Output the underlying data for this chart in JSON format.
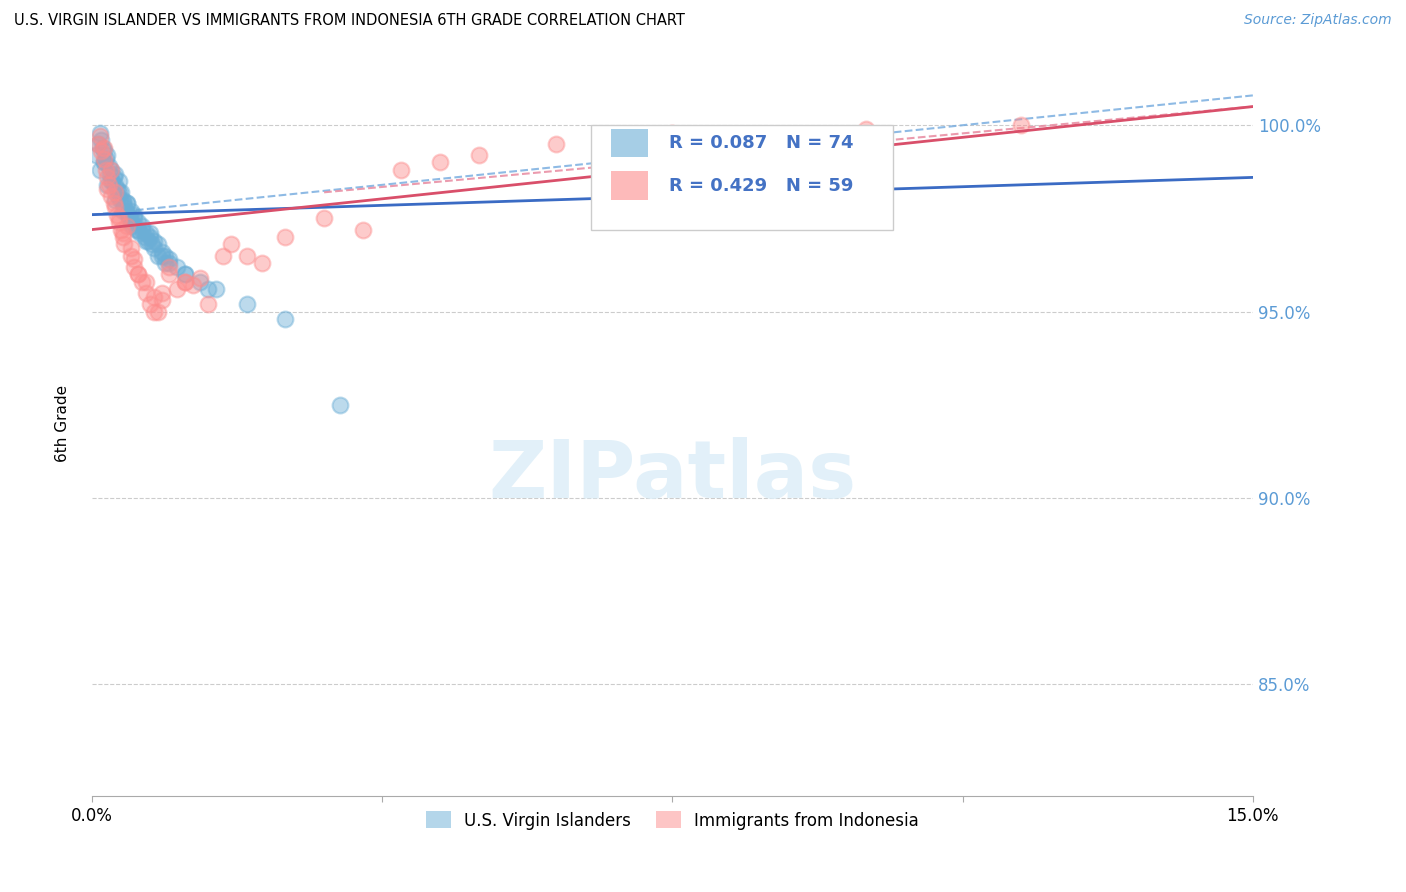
{
  "title": "U.S. VIRGIN ISLANDER VS IMMIGRANTS FROM INDONESIA 6TH GRADE CORRELATION CHART",
  "source": "Source: ZipAtlas.com",
  "ylabel": "6th Grade",
  "yticks": [
    100.0,
    95.0,
    90.0,
    85.0
  ],
  "ytick_labels": [
    "100.0%",
    "95.0%",
    "90.0%",
    "85.0%"
  ],
  "xlim": [
    0.0,
    15.0
  ],
  "ylim": [
    82.0,
    102.0
  ],
  "legend_label1": "U.S. Virgin Islanders",
  "legend_label2": "Immigrants from Indonesia",
  "r1": 0.087,
  "n1": 74,
  "r2": 0.429,
  "n2": 59,
  "color_blue": "#6baed6",
  "color_pink": "#fc8d8d",
  "watermark": "ZIPatlas",
  "blue_trend_x0": 0.0,
  "blue_trend_y0": 97.6,
  "blue_trend_x1": 15.0,
  "blue_trend_y1": 98.6,
  "pink_trend_x0": 0.0,
  "pink_trend_y0": 97.2,
  "pink_trend_x1": 15.0,
  "pink_trend_y1": 100.5,
  "blue_dash_x0": 0.0,
  "blue_dash_y0": 97.6,
  "blue_dash_x1": 15.0,
  "blue_dash_y1": 100.8,
  "pink_dash_x0": 3.0,
  "pink_dash_y0": 98.2,
  "pink_dash_x1": 15.0,
  "pink_dash_y1": 100.5,
  "blue_scatter_x": [
    0.05,
    0.08,
    0.1,
    0.12,
    0.14,
    0.15,
    0.16,
    0.18,
    0.2,
    0.22,
    0.24,
    0.25,
    0.26,
    0.28,
    0.3,
    0.3,
    0.32,
    0.34,
    0.35,
    0.36,
    0.38,
    0.4,
    0.4,
    0.42,
    0.44,
    0.45,
    0.46,
    0.48,
    0.5,
    0.5,
    0.52,
    0.55,
    0.58,
    0.6,
    0.62,
    0.65,
    0.68,
    0.7,
    0.72,
    0.75,
    0.78,
    0.8,
    0.85,
    0.9,
    0.95,
    1.0,
    1.1,
    1.2,
    1.4,
    1.6,
    2.0,
    2.5,
    3.2,
    0.1,
    0.2,
    0.3,
    0.4,
    0.5,
    0.6,
    0.7,
    0.8,
    0.9,
    1.0,
    1.2,
    1.5,
    0.15,
    0.25,
    0.35,
    0.45,
    0.55,
    0.65,
    0.75,
    0.85,
    0.95
  ],
  "blue_scatter_y": [
    99.2,
    99.5,
    99.8,
    99.6,
    99.4,
    99.3,
    99.0,
    99.1,
    99.2,
    98.9,
    98.7,
    98.8,
    98.5,
    98.6,
    98.7,
    98.4,
    98.3,
    98.1,
    98.5,
    98.0,
    98.2,
    98.0,
    97.9,
    97.8,
    97.7,
    97.9,
    97.6,
    97.5,
    97.7,
    97.4,
    97.3,
    97.5,
    97.2,
    97.4,
    97.1,
    97.2,
    97.0,
    97.1,
    96.9,
    97.0,
    96.8,
    96.9,
    96.5,
    96.6,
    96.3,
    96.4,
    96.2,
    96.0,
    95.8,
    95.6,
    95.2,
    94.8,
    92.5,
    98.8,
    98.4,
    98.0,
    97.7,
    97.5,
    97.2,
    96.9,
    96.7,
    96.5,
    96.3,
    96.0,
    95.6,
    99.0,
    98.5,
    98.2,
    97.9,
    97.6,
    97.3,
    97.1,
    96.8,
    96.5
  ],
  "pink_scatter_x": [
    0.08,
    0.1,
    0.12,
    0.15,
    0.18,
    0.2,
    0.22,
    0.25,
    0.28,
    0.3,
    0.32,
    0.35,
    0.38,
    0.4,
    0.42,
    0.45,
    0.5,
    0.55,
    0.6,
    0.65,
    0.7,
    0.75,
    0.8,
    0.9,
    1.0,
    1.2,
    1.5,
    2.0,
    2.5,
    3.0,
    4.0,
    5.0,
    6.0,
    7.5,
    10.0,
    12.0,
    0.2,
    0.3,
    0.4,
    0.55,
    0.7,
    0.9,
    1.1,
    1.4,
    2.2,
    4.5,
    0.15,
    0.35,
    0.6,
    0.85,
    1.2,
    1.8,
    0.25,
    0.5,
    0.8,
    1.0,
    1.3,
    1.7,
    3.5
  ],
  "pink_scatter_y": [
    99.5,
    99.7,
    99.3,
    99.1,
    98.8,
    98.6,
    98.4,
    98.1,
    97.9,
    98.2,
    97.6,
    97.4,
    97.2,
    97.0,
    96.8,
    97.3,
    96.5,
    96.2,
    96.0,
    95.8,
    95.5,
    95.2,
    95.0,
    95.5,
    96.0,
    95.8,
    95.2,
    96.5,
    97.0,
    97.5,
    98.8,
    99.2,
    99.5,
    99.8,
    99.9,
    100.0,
    98.3,
    97.8,
    97.1,
    96.4,
    95.8,
    95.3,
    95.6,
    95.9,
    96.3,
    99.0,
    99.4,
    97.5,
    96.0,
    95.0,
    95.8,
    96.8,
    98.8,
    96.7,
    95.4,
    96.2,
    95.7,
    96.5,
    97.2
  ],
  "xtick_positions": [
    0.0,
    3.75,
    7.5,
    11.25,
    15.0
  ],
  "xtick_labels": [
    "0.0%",
    "",
    "",
    "",
    "15.0%"
  ]
}
